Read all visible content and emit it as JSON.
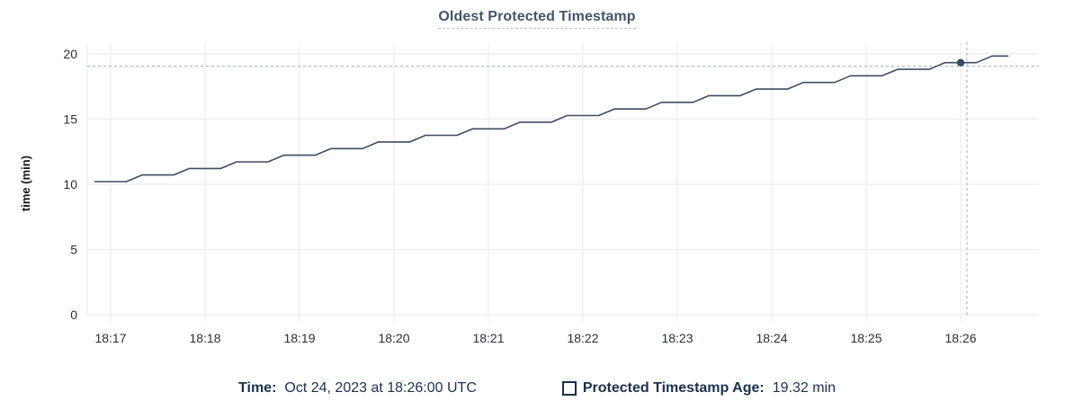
{
  "colors": {
    "line": "#3f4c63",
    "point": "#394a61",
    "grid": "#ededed",
    "crosshair": "#a9bdcb",
    "title": "#44546c",
    "legend_text": "#1b3150",
    "tick_text": "#2a2f38",
    "axis_label": "#15181d",
    "underline": "#b7c0ca"
  },
  "legend": {
    "time_label": "Time:",
    "time_value": "Oct 24, 2023 at 18:26:00 UTC",
    "series_label": "Protected Timestamp Age:",
    "series_value": "19.32 min"
  },
  "chart_data": {
    "type": "line",
    "title": "Oldest Protected Timestamp",
    "xlabel": "",
    "ylabel": "time (min)",
    "ylim": [
      0,
      20
    ],
    "y_ticks": [
      0,
      5,
      10,
      15,
      20
    ],
    "x_ticks": [
      "18:17",
      "18:18",
      "18:19",
      "18:20",
      "18:21",
      "18:22",
      "18:23",
      "18:24",
      "18:25",
      "18:26"
    ],
    "grid": true,
    "legend_position": "bottom",
    "series": [
      {
        "name": "Protected Timestamp Age",
        "unit": "min",
        "points": [
          [
            "18:16:50",
            10.2
          ],
          [
            "18:17:00",
            10.2
          ],
          [
            "18:17:10",
            10.2
          ],
          [
            "18:17:20",
            10.71
          ],
          [
            "18:17:30",
            10.71
          ],
          [
            "18:17:40",
            10.71
          ],
          [
            "18:17:50",
            11.21
          ],
          [
            "18:18:00",
            11.21
          ],
          [
            "18:18:10",
            11.21
          ],
          [
            "18:18:20",
            11.72
          ],
          [
            "18:18:30",
            11.72
          ],
          [
            "18:18:40",
            11.72
          ],
          [
            "18:18:50",
            12.23
          ],
          [
            "18:19:00",
            12.23
          ],
          [
            "18:19:10",
            12.23
          ],
          [
            "18:19:20",
            12.73
          ],
          [
            "18:19:30",
            12.73
          ],
          [
            "18:19:40",
            12.73
          ],
          [
            "18:19:50",
            13.24
          ],
          [
            "18:20:00",
            13.24
          ],
          [
            "18:20:10",
            13.24
          ],
          [
            "18:20:20",
            13.75
          ],
          [
            "18:20:30",
            13.75
          ],
          [
            "18:20:40",
            13.75
          ],
          [
            "18:20:50",
            14.25
          ],
          [
            "18:21:00",
            14.25
          ],
          [
            "18:21:10",
            14.25
          ],
          [
            "18:21:20",
            14.76
          ],
          [
            "18:21:30",
            14.76
          ],
          [
            "18:21:40",
            14.76
          ],
          [
            "18:21:50",
            15.27
          ],
          [
            "18:22:00",
            15.27
          ],
          [
            "18:22:10",
            15.27
          ],
          [
            "18:22:20",
            15.77
          ],
          [
            "18:22:30",
            15.77
          ],
          [
            "18:22:40",
            15.77
          ],
          [
            "18:22:50",
            16.28
          ],
          [
            "18:23:00",
            16.28
          ],
          [
            "18:23:10",
            16.28
          ],
          [
            "18:23:20",
            16.79
          ],
          [
            "18:23:30",
            16.79
          ],
          [
            "18:23:40",
            16.79
          ],
          [
            "18:23:50",
            17.29
          ],
          [
            "18:24:00",
            17.29
          ],
          [
            "18:24:10",
            17.29
          ],
          [
            "18:24:20",
            17.8
          ],
          [
            "18:24:30",
            17.8
          ],
          [
            "18:24:40",
            17.8
          ],
          [
            "18:24:50",
            18.31
          ],
          [
            "18:25:00",
            18.31
          ],
          [
            "18:25:10",
            18.31
          ],
          [
            "18:25:20",
            18.81
          ],
          [
            "18:25:30",
            18.81
          ],
          [
            "18:25:40",
            18.81
          ],
          [
            "18:25:50",
            19.32
          ],
          [
            "18:26:00",
            19.32
          ],
          [
            "18:26:10",
            19.32
          ],
          [
            "18:26:20",
            19.83
          ],
          [
            "18:26:30",
            19.83
          ]
        ]
      }
    ],
    "hover_point": {
      "x": "18:26:00",
      "y": 19.32
    },
    "crosshair": {
      "x": "18:26:04",
      "y": 19.05
    }
  }
}
